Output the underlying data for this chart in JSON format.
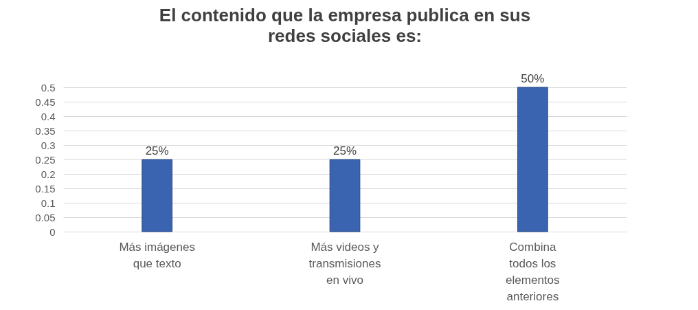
{
  "chart_data": {
    "type": "bar",
    "title": "El contenido que la empresa publica en sus redes sociales es:",
    "categories": [
      "Más imágenes que texto",
      "Más videos y transmisiones en vivo",
      "Combina todos los elementos anteriores"
    ],
    "values": [
      0.25,
      0.25,
      0.5
    ],
    "value_labels": [
      "25%",
      "25%",
      "50%"
    ],
    "color": "#3a63b0",
    "ylim": [
      0,
      0.5
    ],
    "yticks": [
      0,
      0.05,
      0.1,
      0.15,
      0.2,
      0.25,
      0.3,
      0.35,
      0.4,
      0.45,
      0.5
    ],
    "grid": "y"
  }
}
